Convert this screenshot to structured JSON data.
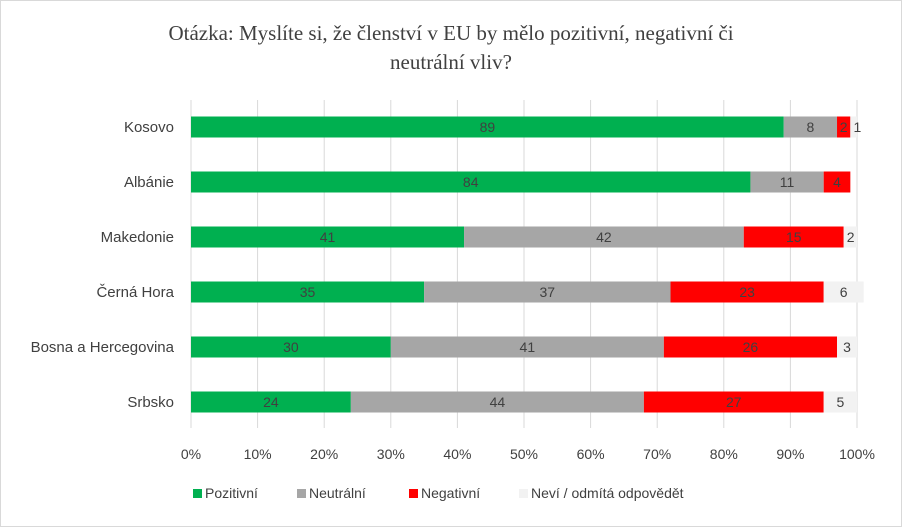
{
  "chart_data": {
    "type": "bar",
    "orientation": "horizontal",
    "stacked": true,
    "title": "Otázka: Myslíte si, že členství v EU by mělo pozitivní, negativní či neutrální vliv?",
    "title_lines": [
      "Otázka: Myslíte si, že členství v EU by mělo pozitivní, negativní či",
      "neutrální vliv?"
    ],
    "categories": [
      "Kosovo",
      "Albánie",
      "Makedonie",
      "Černá Hora",
      "Bosna a Hercegovina",
      "Srbsko"
    ],
    "series": [
      {
        "name": "Pozitivní",
        "color": "#00b050",
        "values": [
          89,
          84,
          41,
          35,
          30,
          24
        ]
      },
      {
        "name": "Neutrální",
        "color": "#a6a6a6",
        "values": [
          8,
          11,
          42,
          37,
          41,
          44
        ]
      },
      {
        "name": "Negativní",
        "color": "#ff0000",
        "values": [
          2,
          4,
          15,
          23,
          26,
          27
        ]
      },
      {
        "name": "Neví / odmítá odpovědět",
        "color": "#f2f2f2",
        "values": [
          1,
          0,
          2,
          6,
          3,
          5
        ]
      }
    ],
    "data_labels": [
      [
        "89",
        "8",
        "2",
        "1"
      ],
      [
        "84",
        "11",
        "4",
        ""
      ],
      [
        "41",
        "42",
        "15",
        "2"
      ],
      [
        "35",
        "37",
        "23",
        "6"
      ],
      [
        "30",
        "41",
        "26",
        "3"
      ],
      [
        "24",
        "44",
        "27",
        "5"
      ]
    ],
    "xlim": [
      0,
      100
    ],
    "xticks": [
      "0%",
      "10%",
      "20%",
      "30%",
      "40%",
      "50%",
      "60%",
      "70%",
      "80%",
      "90%",
      "100%"
    ],
    "grid": true,
    "legend_position": "bottom"
  }
}
